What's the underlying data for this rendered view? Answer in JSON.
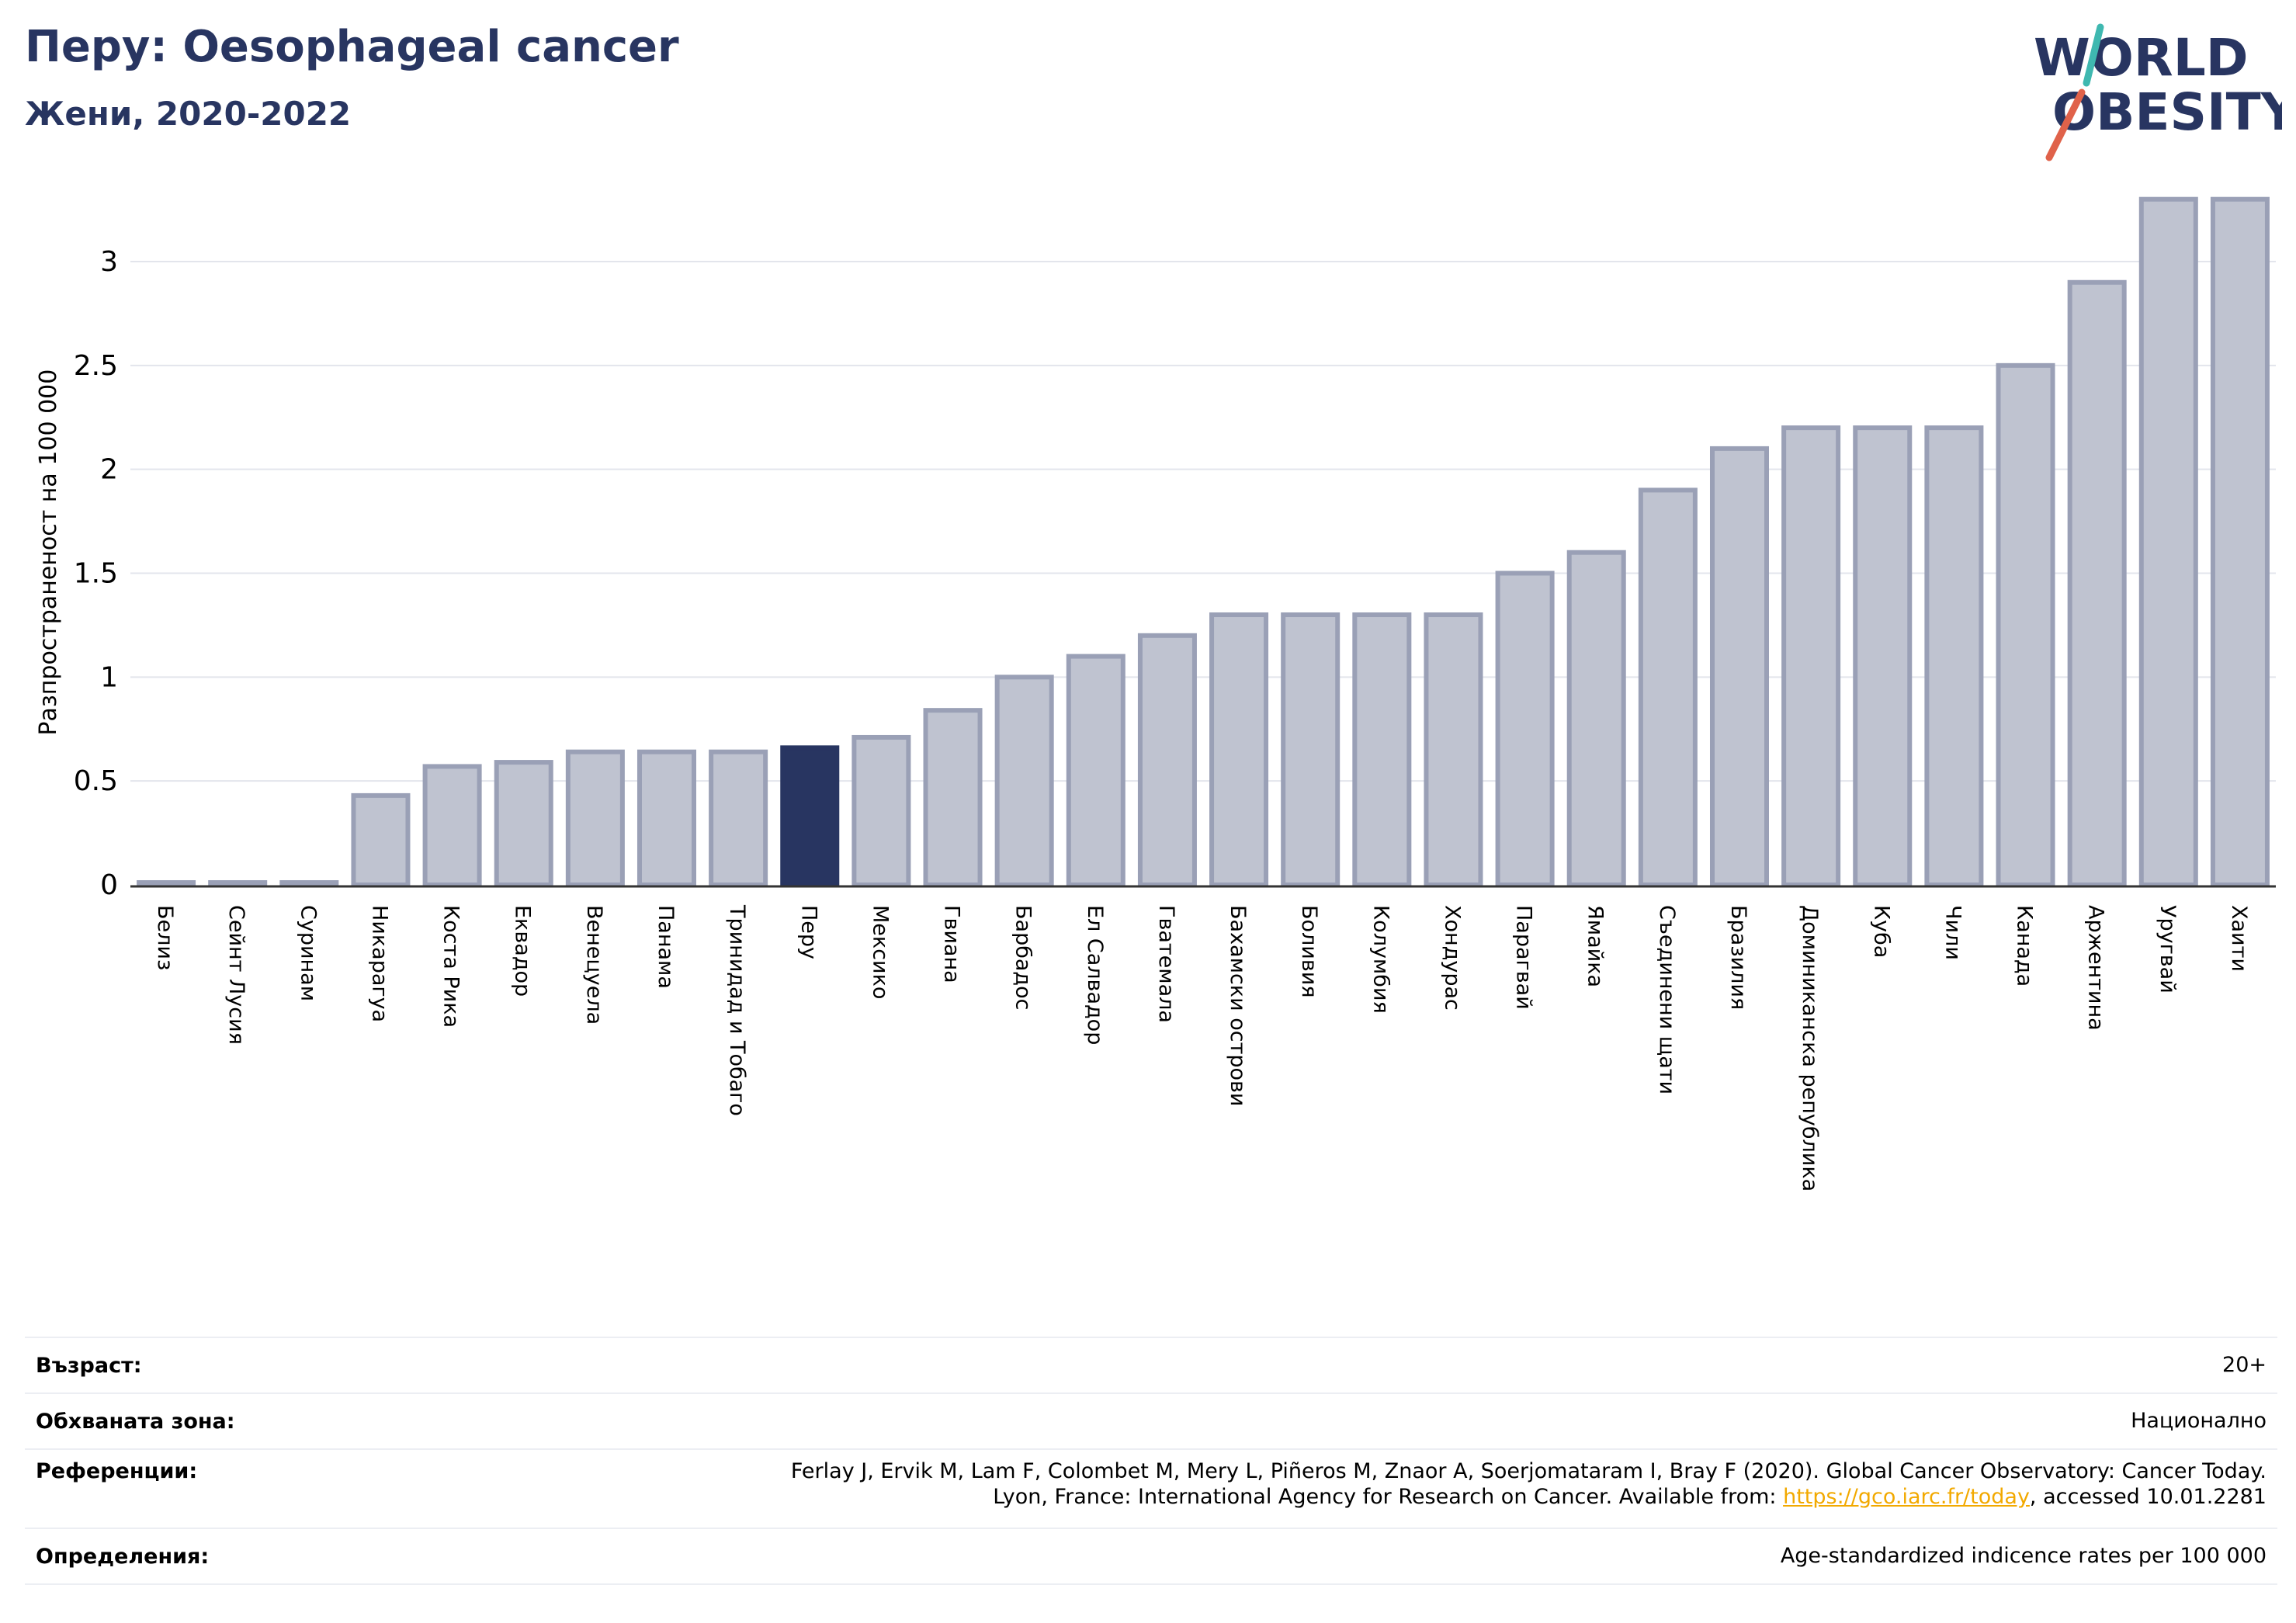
{
  "header": {
    "title": "Перу: Oesophageal cancer",
    "subtitle": "Жени, 2020-2022"
  },
  "logo": {
    "line1": "WORLD",
    "line2": "OBESITY",
    "text_color": "#283561",
    "slash_colors": [
      "#e0624a",
      "#3fb8b0"
    ]
  },
  "chart_data": {
    "type": "bar",
    "ylabel": "Разпространеност  на 100 000",
    "ylim": [
      0,
      3.35
    ],
    "yticks": [
      0,
      0.5,
      1,
      1.5,
      2,
      2.5,
      3
    ],
    "ytick_labels": [
      "0",
      "0.5",
      "1",
      "1.5",
      "2",
      "2.5",
      "3"
    ],
    "grid": true,
    "highlight": "Перу",
    "colors": {
      "bar": "#bfc3d0",
      "bar_edge": "#9aa0b6",
      "highlight": "#283561",
      "grid": "#e3e5ec",
      "axis": "#333333"
    },
    "categories": [
      "Белиз",
      "Сейнт Лусия",
      "Суринам",
      "Никарагуа",
      "Коста Рика",
      "Еквадор",
      "Венецуела",
      "Панама",
      "Тринидад и Тобаго",
      "Перу",
      "Мексико",
      "Гвиана",
      "Барбадос",
      "Ел Салвадор",
      "Гватемала",
      "Бахамски острови",
      "Боливия",
      "Колумбия",
      "Хондурас",
      "Парагвай",
      "Ямайка",
      "Съединени щати",
      "Бразилия",
      "Доминиканска република",
      "Куба",
      "Чили",
      "Канада",
      "Аржентина",
      "Уругвай",
      "Хаити"
    ],
    "values": [
      0.01,
      0.01,
      0.01,
      0.43,
      0.57,
      0.59,
      0.64,
      0.64,
      0.64,
      0.66,
      0.71,
      0.84,
      1.0,
      1.1,
      1.2,
      1.3,
      1.3,
      1.3,
      1.3,
      1.5,
      1.6,
      1.9,
      2.1,
      2.2,
      2.2,
      2.2,
      2.5,
      2.9,
      3.3,
      3.3
    ]
  },
  "info": {
    "age": {
      "label": "Възраст:",
      "value": "20+"
    },
    "area": {
      "label": "Обхваната зона:",
      "value": "Национално"
    },
    "references": {
      "label": "Референции:",
      "line1": "Ferlay J, Ervik M, Lam F, Colombet M, Mery L, Piñeros M, Znaor A, Soerjomataram I, Bray F (2020). Global Cancer Observatory: Cancer Today.",
      "line2_prefix": "Lyon, France: International Agency for Research on Cancer. Available from: ",
      "link": "https://gco.iarc.fr/today",
      "line2_suffix": ", accessed 10.01.2281"
    },
    "definitions": {
      "label": "Определения:",
      "value": "Age-standardized indicence rates per 100 000"
    }
  }
}
